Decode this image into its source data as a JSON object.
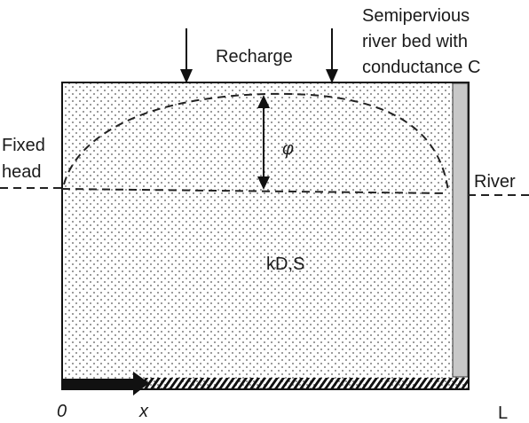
{
  "labels": {
    "recharge": "Recharge",
    "river_bed_line1": "Semipervious",
    "river_bed_line2": "river bed with",
    "river_bed_line3": "conductance C",
    "fixed_head_line1": "Fixed",
    "fixed_head_line2": "head",
    "river": "River",
    "phi": "φ",
    "aquifer_params": "kD,S",
    "origin": "0",
    "x_axis": "x",
    "length": "L"
  }
}
